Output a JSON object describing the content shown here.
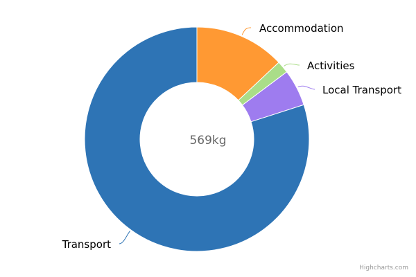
{
  "chart_data": {
    "type": "pie",
    "center_label": "569kg",
    "slices": [
      {
        "name": "Accommodation",
        "value": 74,
        "color": "#FF9933"
      },
      {
        "name": "Activities",
        "value": 10,
        "color": "#AADD88"
      },
      {
        "name": "Local Transport",
        "value": 30,
        "color": "#9E7CEF"
      },
      {
        "name": "Transport",
        "value": 455,
        "color": "#2E74B5"
      }
    ]
  },
  "credits": "Highcharts.com"
}
